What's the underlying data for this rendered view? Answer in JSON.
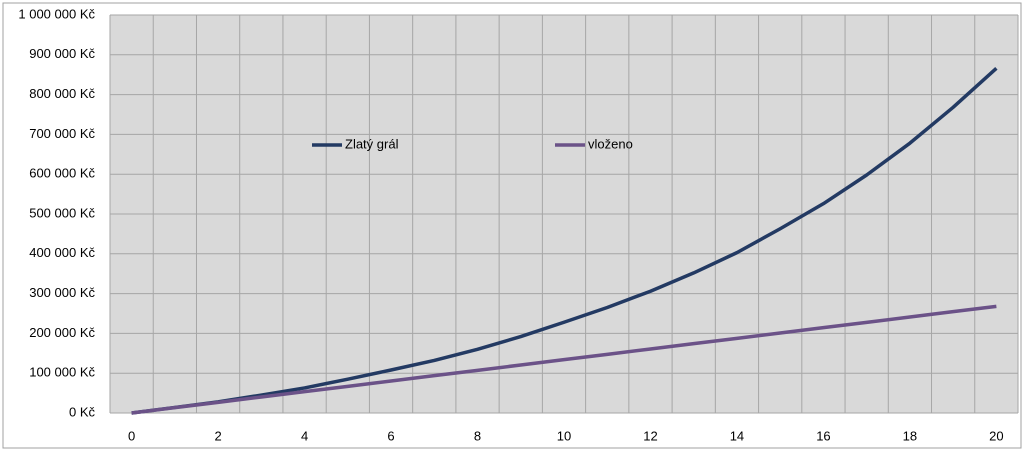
{
  "chart_data": {
    "type": "line",
    "categories": [
      "0",
      null,
      "2",
      null,
      "4",
      null,
      "6",
      null,
      "8",
      null,
      "10",
      null,
      "12",
      null,
      "14",
      null,
      "16",
      null,
      "18",
      null,
      "20"
    ],
    "series": [
      {
        "name": "Zlatý grál",
        "color": "#233a63",
        "values": [
          0,
          14000,
          28000,
          45000,
          63000,
          85000,
          108000,
          132000,
          160000,
          192000,
          228000,
          265000,
          306000,
          352000,
          403000,
          463000,
          526000,
          598000,
          678000,
          768000,
          866000
        ]
      },
      {
        "name": "vloženo",
        "color": "#6b5288",
        "values": [
          0,
          13400,
          26800,
          40200,
          53600,
          67000,
          80400,
          93800,
          107200,
          120600,
          134000,
          147400,
          160800,
          174200,
          187600,
          201000,
          214400,
          227800,
          241200,
          254600,
          268000
        ]
      }
    ],
    "ylim": [
      0,
      1000000
    ],
    "yticks": [
      {
        "value": 0,
        "label": "0 Kč"
      },
      {
        "value": 100000,
        "label": "100 000 Kč"
      },
      {
        "value": 200000,
        "label": "200 000 Kč"
      },
      {
        "value": 300000,
        "label": "300 000 Kč"
      },
      {
        "value": 400000,
        "label": "400 000 Kč"
      },
      {
        "value": 500000,
        "label": "500 000 Kč"
      },
      {
        "value": 600000,
        "label": "600 000 Kč"
      },
      {
        "value": 700000,
        "label": "700 000 Kč"
      },
      {
        "value": 800000,
        "label": "800 000 Kč"
      },
      {
        "value": 900000,
        "label": "900 000 Kč"
      },
      {
        "value": 1000000,
        "label": "1 000 000 Kč"
      }
    ],
    "grid": true,
    "legend": "center"
  }
}
